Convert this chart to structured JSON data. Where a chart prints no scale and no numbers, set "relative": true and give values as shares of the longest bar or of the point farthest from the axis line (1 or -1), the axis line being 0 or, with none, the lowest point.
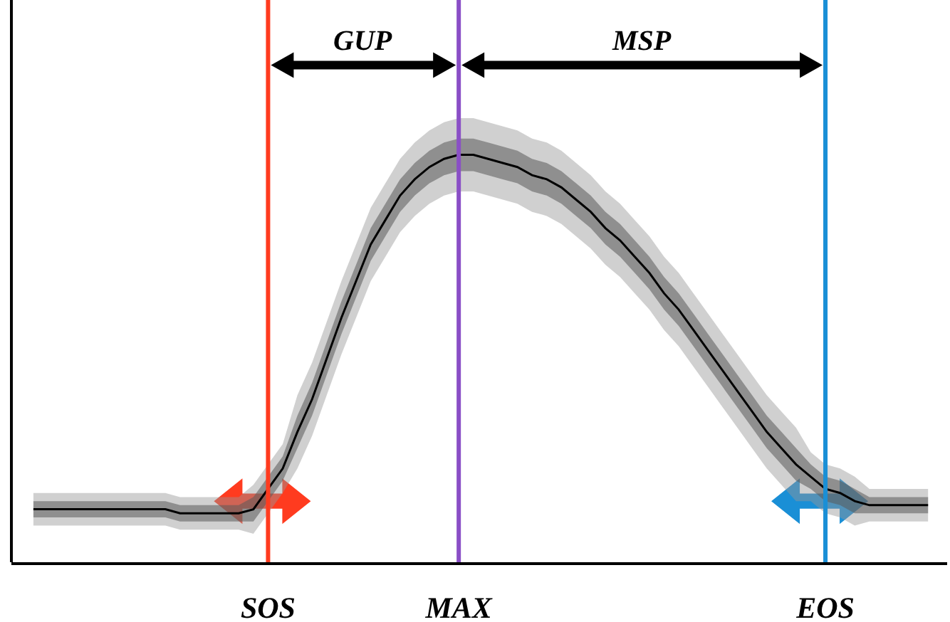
{
  "chart_data": {
    "type": "line",
    "relative": true,
    "marker": "none",
    "line_style": "solid",
    "categories": [
      null,
      null,
      null,
      null,
      null,
      null,
      null,
      null,
      null,
      null,
      null,
      null,
      null,
      null,
      null,
      null,
      "SOS",
      null,
      null,
      null,
      null,
      null,
      null,
      null,
      null,
      null,
      null,
      null,
      null,
      "MAX",
      null,
      null,
      null,
      null,
      null,
      null,
      null,
      null,
      null,
      null,
      null,
      null,
      null,
      null,
      null,
      null,
      null,
      null,
      null,
      null,
      null,
      null,
      null,
      null,
      "EOS",
      null,
      null,
      null,
      null,
      null,
      null,
      null
    ],
    "series": [
      {
        "color": "#000000",
        "values": [
          0.13,
          0.13,
          0.13,
          0.13,
          0.13,
          0.13,
          0.13,
          0.13,
          0.13,
          0.13,
          0.12,
          0.12,
          0.12,
          0.12,
          0.12,
          0.13,
          0.18,
          0.23,
          0.32,
          0.4,
          0.5,
          0.6,
          0.69,
          0.78,
          0.84,
          0.9,
          0.94,
          0.97,
          0.99,
          1,
          1,
          0.99,
          0.98,
          0.97,
          0.95,
          0.94,
          0.92,
          0.89,
          0.86,
          0.82,
          0.79,
          0.75,
          0.71,
          0.66,
          0.62,
          0.57,
          0.52,
          0.47,
          0.42,
          0.37,
          0.32,
          0.28,
          0.24,
          0.21,
          0.18,
          0.17,
          0.15,
          0.14,
          0.14,
          0.14,
          0.14,
          0.14
        ],
        "lower": [
          0.11,
          0.11,
          0.11,
          0.11,
          0.11,
          0.11,
          0.11,
          0.11,
          0.11,
          0.11,
          0.1,
          0.1,
          0.1,
          0.1,
          0.1,
          0.1,
          0.15,
          0.2,
          0.28,
          0.36,
          0.46,
          0.56,
          0.65,
          0.74,
          0.8,
          0.86,
          0.9,
          0.93,
          0.95,
          0.96,
          0.96,
          0.95,
          0.94,
          0.93,
          0.91,
          0.9,
          0.88,
          0.85,
          0.82,
          0.78,
          0.75,
          0.71,
          0.67,
          0.62,
          0.58,
          0.53,
          0.48,
          0.43,
          0.38,
          0.33,
          0.28,
          0.24,
          0.2,
          0.18,
          0.15,
          0.14,
          0.12,
          0.12,
          0.12,
          0.12,
          0.12,
          0.12
        ],
        "upper": [
          0.15,
          0.15,
          0.15,
          0.15,
          0.15,
          0.15,
          0.15,
          0.15,
          0.15,
          0.15,
          0.14,
          0.14,
          0.14,
          0.14,
          0.14,
          0.16,
          0.21,
          0.26,
          0.36,
          0.44,
          0.54,
          0.64,
          0.73,
          0.82,
          0.88,
          0.94,
          0.98,
          1.01,
          1.03,
          1.04,
          1.04,
          1.03,
          1.02,
          1.01,
          0.99,
          0.98,
          0.96,
          0.93,
          0.9,
          0.86,
          0.83,
          0.79,
          0.75,
          0.7,
          0.66,
          0.61,
          0.56,
          0.51,
          0.46,
          0.41,
          0.36,
          0.32,
          0.28,
          0.24,
          0.21,
          0.2,
          0.18,
          0.16,
          0.16,
          0.16,
          0.16,
          0.16
        ]
      },
      {
        "color": "#969696",
        "values": [
          null,
          null,
          null,
          null,
          null,
          null,
          null,
          null,
          null,
          null,
          null,
          null,
          null,
          null,
          null,
          null,
          null,
          null,
          null,
          null,
          null,
          null,
          null,
          null,
          null,
          null,
          null,
          null,
          null,
          null,
          null,
          null,
          null,
          null,
          null,
          null,
          null,
          null,
          null,
          null,
          null,
          null,
          null,
          null,
          null,
          null,
          null,
          null,
          null,
          null,
          null,
          null,
          null,
          null,
          null,
          null,
          null,
          null,
          null,
          null,
          null,
          null
        ],
        "lower": [
          0.09,
          0.09,
          0.09,
          0.09,
          0.09,
          0.09,
          0.09,
          0.09,
          0.09,
          0.09,
          0.08,
          0.08,
          0.08,
          0.08,
          0.08,
          0.07,
          0.12,
          0.17,
          0.23,
          0.31,
          0.41,
          0.51,
          0.6,
          0.69,
          0.75,
          0.81,
          0.85,
          0.88,
          0.9,
          0.91,
          0.91,
          0.9,
          0.89,
          0.88,
          0.86,
          0.85,
          0.83,
          0.8,
          0.77,
          0.73,
          0.7,
          0.66,
          0.62,
          0.57,
          0.53,
          0.48,
          0.43,
          0.38,
          0.33,
          0.28,
          0.23,
          0.19,
          0.15,
          0.15,
          0.12,
          0.11,
          0.09,
          0.1,
          0.1,
          0.1,
          0.1,
          0.1
        ],
        "upper": [
          0.17,
          0.17,
          0.17,
          0.17,
          0.17,
          0.17,
          0.17,
          0.17,
          0.17,
          0.17,
          0.16,
          0.16,
          0.16,
          0.16,
          0.16,
          0.19,
          0.24,
          0.29,
          0.41,
          0.49,
          0.59,
          0.69,
          0.78,
          0.87,
          0.93,
          0.99,
          1.03,
          1.06,
          1.08,
          1.09,
          1.09,
          1.08,
          1.07,
          1.06,
          1.04,
          1.03,
          1.01,
          0.98,
          0.95,
          0.91,
          0.88,
          0.84,
          0.8,
          0.75,
          0.71,
          0.66,
          0.61,
          0.56,
          0.51,
          0.46,
          0.41,
          0.37,
          0.33,
          0.27,
          0.24,
          0.23,
          0.21,
          0.18,
          0.18,
          0.18,
          0.18,
          0.18
        ]
      }
    ],
    "ref_lines": [
      {
        "axis": "x",
        "value": "SOS",
        "color": "#ff3b1f"
      },
      {
        "axis": "x",
        "value": "MAX",
        "color": "#8a4fc6"
      },
      {
        "axis": "x",
        "value": "EOS",
        "color": "#1a8fd6"
      }
    ],
    "annotations": [
      "GUP",
      "MSP"
    ]
  }
}
